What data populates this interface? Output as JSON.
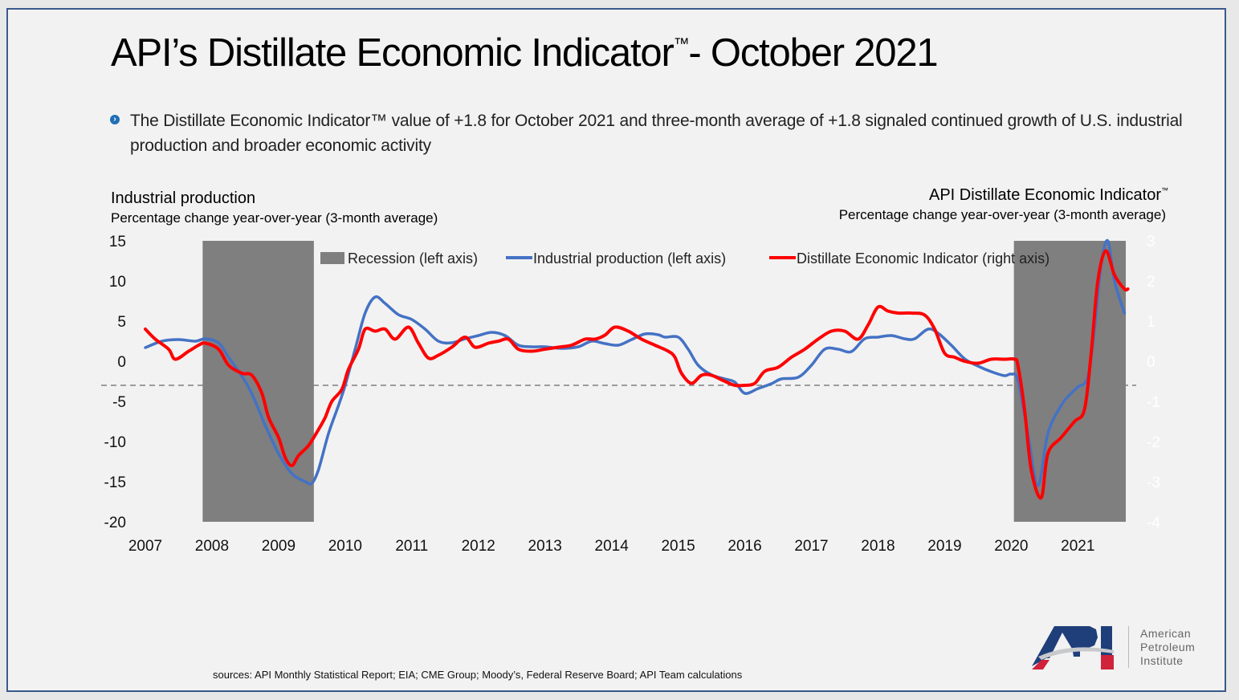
{
  "slide": {
    "title": "API’s Distillate Economic Indicator",
    "title_tm": "™",
    "title_suffix": "- October 2021",
    "bullet_icon": "chevron-right-circle-icon",
    "bullet_text": "The Distillate Economic Indicator™ value of +1.8 for October 2021 and three-month average of +1.8 signaled continued growth of U.S. industrial production and broader economic activity",
    "source": "sources: API Monthly Statistical Report; EIA; CME Group; Moody’s, Federal Reserve Board; API Team calculations",
    "logo": {
      "mark": "API",
      "lines": [
        "American",
        "Petroleum",
        "Institute"
      ],
      "colors": {
        "blue": "#1f3f7a",
        "red": "#d0223a",
        "gray": "#c7c9cc"
      }
    }
  },
  "chart_data": {
    "type": "line",
    "left_axis": {
      "title": "Industrial production",
      "subtitle": "Percentage change year-over-year (3-month average)",
      "range": [
        -20,
        15
      ],
      "ticks": [
        15,
        10,
        5,
        0,
        -5,
        -10,
        -15,
        -20
      ]
    },
    "right_axis": {
      "title": "API Distillate Economic Indicator",
      "title_tm": "™",
      "subtitle": "Percentage change year-over-year (3-month average)",
      "range": [
        -4,
        3
      ],
      "ticks": [
        3,
        2,
        1,
        0,
        -1,
        -2,
        -3,
        -4
      ],
      "tick_color": "#ffffff"
    },
    "x_axis": {
      "range": [
        2007,
        2021.85
      ],
      "ticks": [
        "2007",
        "2008",
        "2009",
        "2010",
        "2011",
        "2012",
        "2013",
        "2014",
        "2015",
        "2016",
        "2017",
        "2018",
        "2019",
        "2020",
        "2021"
      ]
    },
    "reference_line": {
      "axis": "left",
      "value": -3,
      "style": "dashed",
      "color": "#808080"
    },
    "legend": {
      "position": "top",
      "items": [
        {
          "label": "Recession (left axis)",
          "type": "bar",
          "color": "#7f7f7f"
        },
        {
          "label": "Industrial production (left axis)",
          "type": "line",
          "color": "#4472c4"
        },
        {
          "label": "Distillate Economic Indicator (right axis)",
          "type": "line",
          "color": "#ff0000"
        }
      ]
    },
    "recessions": [
      {
        "start": 2007.86,
        "end": 2009.53
      },
      {
        "start": 2020.04,
        "end": 2021.72
      }
    ],
    "series": [
      {
        "name": "Industrial production (left axis)",
        "axis": "left",
        "color": "#4472c4",
        "x": [
          2007.0,
          2007.25,
          2007.5,
          2007.75,
          2007.9,
          2008.1,
          2008.25,
          2008.5,
          2008.65,
          2008.8,
          2009.0,
          2009.2,
          2009.4,
          2009.5,
          2009.6,
          2009.75,
          2009.9,
          2010.0,
          2010.15,
          2010.3,
          2010.45,
          2010.6,
          2010.8,
          2011.0,
          2011.2,
          2011.4,
          2011.6,
          2011.8,
          2012.0,
          2012.2,
          2012.4,
          2012.6,
          2012.8,
          2013.0,
          2013.25,
          2013.5,
          2013.7,
          2013.9,
          2014.1,
          2014.3,
          2014.5,
          2014.7,
          2014.8,
          2015.0,
          2015.15,
          2015.3,
          2015.5,
          2015.7,
          2015.85,
          2016.0,
          2016.2,
          2016.4,
          2016.55,
          2016.8,
          2017.0,
          2017.2,
          2017.4,
          2017.6,
          2017.8,
          2018.0,
          2018.2,
          2018.4,
          2018.55,
          2018.75,
          2018.9,
          2019.1,
          2019.3,
          2019.5,
          2019.7,
          2019.9,
          2020.0,
          2020.1,
          2020.25,
          2020.4,
          2020.55,
          2020.75,
          2020.9,
          2021.0,
          2021.15,
          2021.25,
          2021.35,
          2021.45,
          2021.55,
          2021.7
        ],
        "values": [
          1.7,
          2.5,
          2.7,
          2.5,
          2.8,
          2.3,
          0.5,
          -2.5,
          -5,
          -8,
          -11.5,
          -14,
          -15,
          -15.2,
          -13.5,
          -9,
          -5.5,
          -3,
          1.5,
          6,
          8,
          7.2,
          5.8,
          5.2,
          4.0,
          2.5,
          2.3,
          2.8,
          3.2,
          3.6,
          3.2,
          2.0,
          1.8,
          1.8,
          1.6,
          1.8,
          2.5,
          2.2,
          2.0,
          2.7,
          3.4,
          3.3,
          3.0,
          3.0,
          1.5,
          -0.5,
          -1.7,
          -2.2,
          -2.6,
          -4.0,
          -3.4,
          -2.8,
          -2.2,
          -2.0,
          -0.5,
          1.5,
          1.5,
          1.2,
          2.8,
          3.0,
          3.2,
          2.8,
          2.8,
          4.0,
          3.5,
          2.0,
          0.3,
          -0.6,
          -1.3,
          -1.8,
          -1.6,
          -2.4,
          -9,
          -15.5,
          -9,
          -5.5,
          -4.0,
          -3.2,
          -2,
          4,
          12,
          15,
          10,
          6.0
        ]
      },
      {
        "name": "Distillate Economic Indicator (right axis)",
        "axis": "right",
        "color": "#ff0000",
        "x": [
          2007.0,
          2007.15,
          2007.35,
          2007.45,
          2007.65,
          2007.8,
          2007.9,
          2008.1,
          2008.25,
          2008.45,
          2008.6,
          2008.75,
          2008.85,
          2009.0,
          2009.1,
          2009.2,
          2009.3,
          2009.45,
          2009.6,
          2009.7,
          2009.8,
          2009.95,
          2010.05,
          2010.2,
          2010.3,
          2010.45,
          2010.6,
          2010.75,
          2010.95,
          2011.1,
          2011.25,
          2011.4,
          2011.6,
          2011.8,
          2011.95,
          2012.15,
          2012.3,
          2012.45,
          2012.6,
          2012.8,
          2013.0,
          2013.2,
          2013.4,
          2013.6,
          2013.75,
          2013.9,
          2014.05,
          2014.25,
          2014.45,
          2014.65,
          2014.85,
          2014.95,
          2015.05,
          2015.2,
          2015.35,
          2015.5,
          2015.7,
          2015.85,
          2016.0,
          2016.15,
          2016.3,
          2016.5,
          2016.7,
          2016.9,
          2017.1,
          2017.3,
          2017.5,
          2017.7,
          2017.85,
          2018.0,
          2018.15,
          2018.3,
          2018.5,
          2018.7,
          2018.85,
          2019.0,
          2019.15,
          2019.3,
          2019.5,
          2019.7,
          2019.9,
          2020.05,
          2020.1,
          2020.2,
          2020.3,
          2020.45,
          2020.55,
          2020.75,
          2020.95,
          2021.1,
          2021.2,
          2021.3,
          2021.42,
          2021.55,
          2021.7,
          2021.75
        ],
        "values": [
          0.8,
          0.55,
          0.3,
          0.05,
          0.25,
          0.4,
          0.45,
          0.3,
          -0.1,
          -0.3,
          -0.35,
          -0.8,
          -1.4,
          -1.9,
          -2.4,
          -2.6,
          -2.35,
          -2.1,
          -1.7,
          -1.4,
          -1.0,
          -0.7,
          -0.2,
          0.3,
          0.8,
          0.75,
          0.8,
          0.55,
          0.85,
          0.45,
          0.08,
          0.15,
          0.35,
          0.6,
          0.35,
          0.45,
          0.5,
          0.55,
          0.3,
          0.25,
          0.3,
          0.35,
          0.4,
          0.55,
          0.55,
          0.65,
          0.85,
          0.75,
          0.55,
          0.4,
          0.25,
          0.1,
          -0.3,
          -0.55,
          -0.35,
          -0.35,
          -0.5,
          -0.6,
          -0.6,
          -0.55,
          -0.25,
          -0.15,
          0.1,
          0.3,
          0.55,
          0.75,
          0.75,
          0.55,
          0.9,
          1.35,
          1.25,
          1.2,
          1.2,
          1.15,
          0.8,
          0.2,
          0.1,
          0.0,
          -0.05,
          0.05,
          0.05,
          0.05,
          -0.1,
          -1.2,
          -2.7,
          -3.4,
          -2.3,
          -1.9,
          -1.5,
          -1.2,
          0.2,
          2.0,
          2.75,
          2.15,
          1.8,
          1.8
        ]
      }
    ]
  }
}
